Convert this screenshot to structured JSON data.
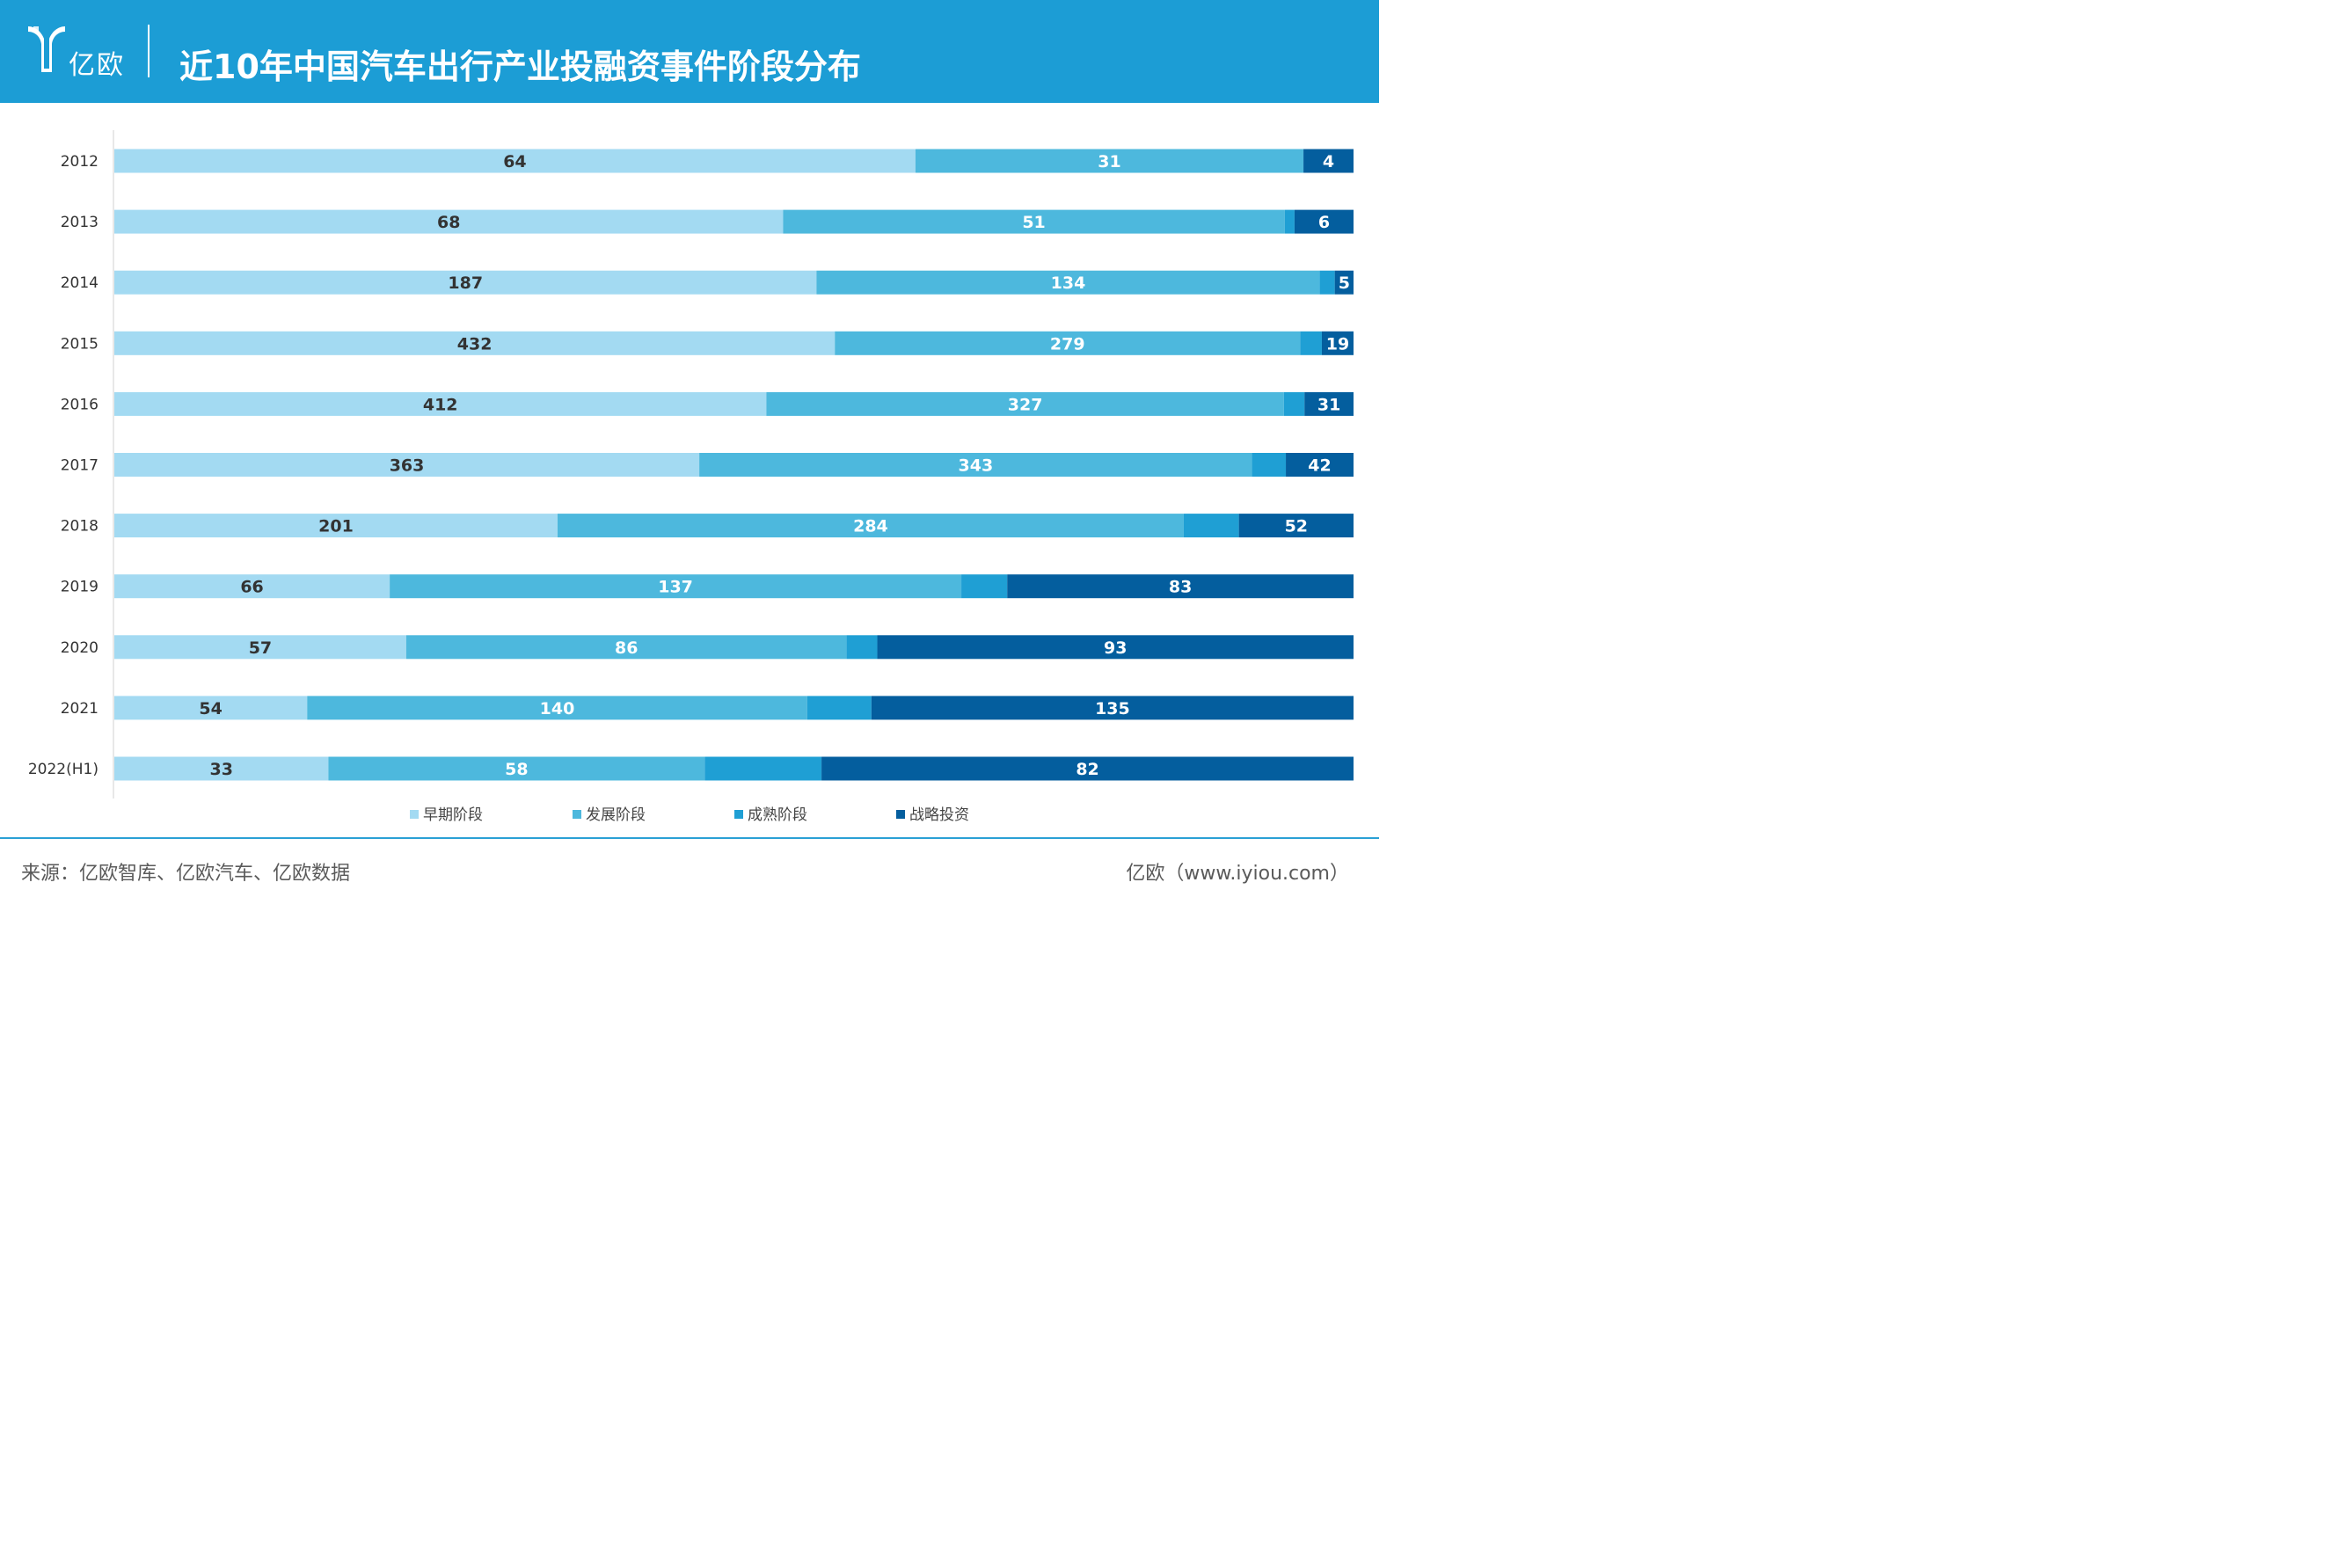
{
  "header": {
    "logo_text": "亿欧",
    "title": "近10年中国汽车出行产业投融资事件阶段分布"
  },
  "chart_data": {
    "type": "bar",
    "orientation": "horizontal",
    "stacked": "percent",
    "categories": [
      "2012",
      "2013",
      "2014",
      "2015",
      "2016",
      "2017",
      "2018",
      "2019",
      "2020",
      "2021",
      "2022(H1)"
    ],
    "series": [
      {
        "name": "早期阶段",
        "color": "#a3daf2",
        "values": [
          64,
          68,
          187,
          432,
          412,
          363,
          201,
          66,
          57,
          54,
          33
        ],
        "labeled": true
      },
      {
        "name": "发展阶段",
        "color": "#4db8dd",
        "values": [
          31,
          51,
          134,
          279,
          327,
          343,
          284,
          137,
          86,
          140,
          58
        ],
        "labeled": true
      },
      {
        "name": "成熟阶段",
        "color": "#1f9fd4",
        "values": [
          0,
          1,
          4,
          13,
          13,
          21,
          25,
          11,
          6,
          18,
          18
        ],
        "labeled": false
      },
      {
        "name": "战略投资",
        "color": "#045e9e",
        "values": [
          4,
          6,
          5,
          19,
          31,
          42,
          52,
          83,
          93,
          135,
          82
        ],
        "labeled": true
      }
    ],
    "legend_position": "bottom",
    "grid": false
  },
  "footer": {
    "source": "来源：亿欧智库、亿欧汽车、亿欧数据",
    "site": "亿欧（www.iyiou.com）"
  }
}
